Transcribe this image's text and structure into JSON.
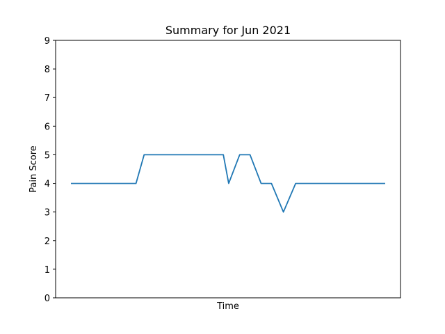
{
  "chart_data": {
    "type": "line",
    "title": "Summary for Jun 2021",
    "xlabel": "Time",
    "ylabel": "Pain Score",
    "ylim": [
      0,
      9
    ],
    "yticks": [
      "0",
      "1",
      "2",
      "3",
      "4",
      "5",
      "6",
      "7",
      "8",
      "9"
    ],
    "xticks_visible": false,
    "grid": false,
    "color": "#1f77b4",
    "series": [
      {
        "x": [
          0,
          0.207,
          0.233,
          0.485,
          0.502,
          0.537,
          0.57,
          0.605,
          0.638,
          0.676,
          0.715,
          1
        ],
        "values": [
          4,
          4,
          5,
          5,
          4,
          5,
          5,
          4,
          4,
          3,
          4,
          4
        ]
      }
    ]
  }
}
